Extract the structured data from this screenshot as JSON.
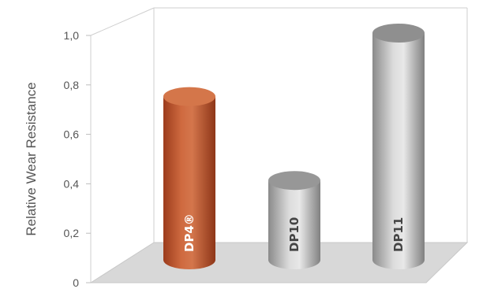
{
  "chart_data": {
    "type": "bar",
    "style": "3d-cylinder",
    "title": "",
    "xlabel": "",
    "ylabel": "Relative Wear Resistance",
    "ylim": [
      0,
      1.0
    ],
    "yticks": [
      "0",
      "0,2",
      "0,4",
      "0,6",
      "0,8",
      "1,0"
    ],
    "ytick_values": [
      0,
      0.2,
      0.4,
      0.6,
      0.8,
      1.0
    ],
    "grid": false,
    "categories": [
      "DP4®",
      "DP10",
      "DP11"
    ],
    "values": [
      0.72,
      0.35,
      1.0
    ],
    "colors": [
      "#c85a30",
      "#b8b8b8",
      "#a9a9a9"
    ],
    "label_colors": [
      "#ffffff",
      "#444444",
      "#444444"
    ]
  }
}
